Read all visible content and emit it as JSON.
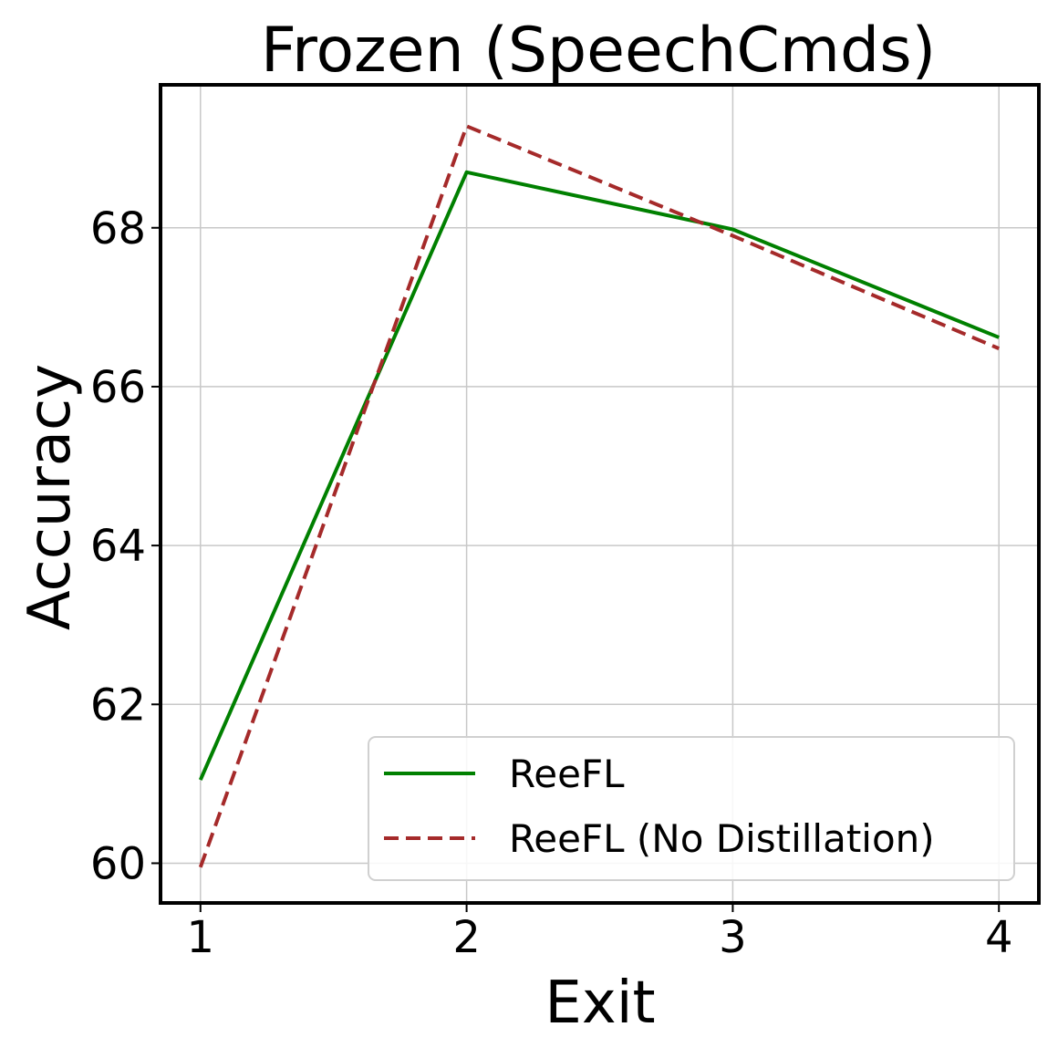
{
  "chart_data": {
    "type": "line",
    "title": "Frozen (SpeechCmds)",
    "xlabel": "Exit",
    "ylabel": "Accuracy",
    "x": [
      1,
      2,
      3,
      4
    ],
    "xticks": [
      "1",
      "2",
      "3",
      "4"
    ],
    "yticks": [
      "60",
      "62",
      "64",
      "66",
      "68"
    ],
    "xlim": [
      0.85,
      4.15
    ],
    "ylim": [
      59.5,
      69.8
    ],
    "grid": true,
    "legend_position": "lower-right",
    "series": [
      {
        "name": "ReeFL",
        "values": [
          61.05,
          68.7,
          67.98,
          66.62
        ],
        "color": "#008000",
        "style": "solid"
      },
      {
        "name": "ReeFL (No Distillation)",
        "values": [
          59.95,
          69.28,
          67.9,
          66.48
        ],
        "color": "#a52a2a",
        "style": "dashed"
      }
    ]
  }
}
